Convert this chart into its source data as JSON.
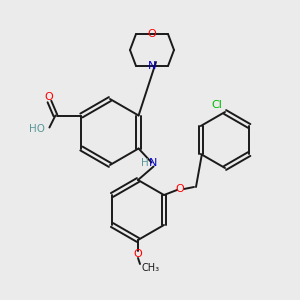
{
  "background_color": "#ebebeb",
  "bond_color": "#1a1a1a",
  "atom_colors": {
    "O": "#ff0000",
    "N": "#0000cc",
    "Cl": "#00bb00",
    "C": "#1a1a1a",
    "H": "#5a9999"
  },
  "figsize": [
    3.0,
    3.0
  ],
  "dpi": 100
}
